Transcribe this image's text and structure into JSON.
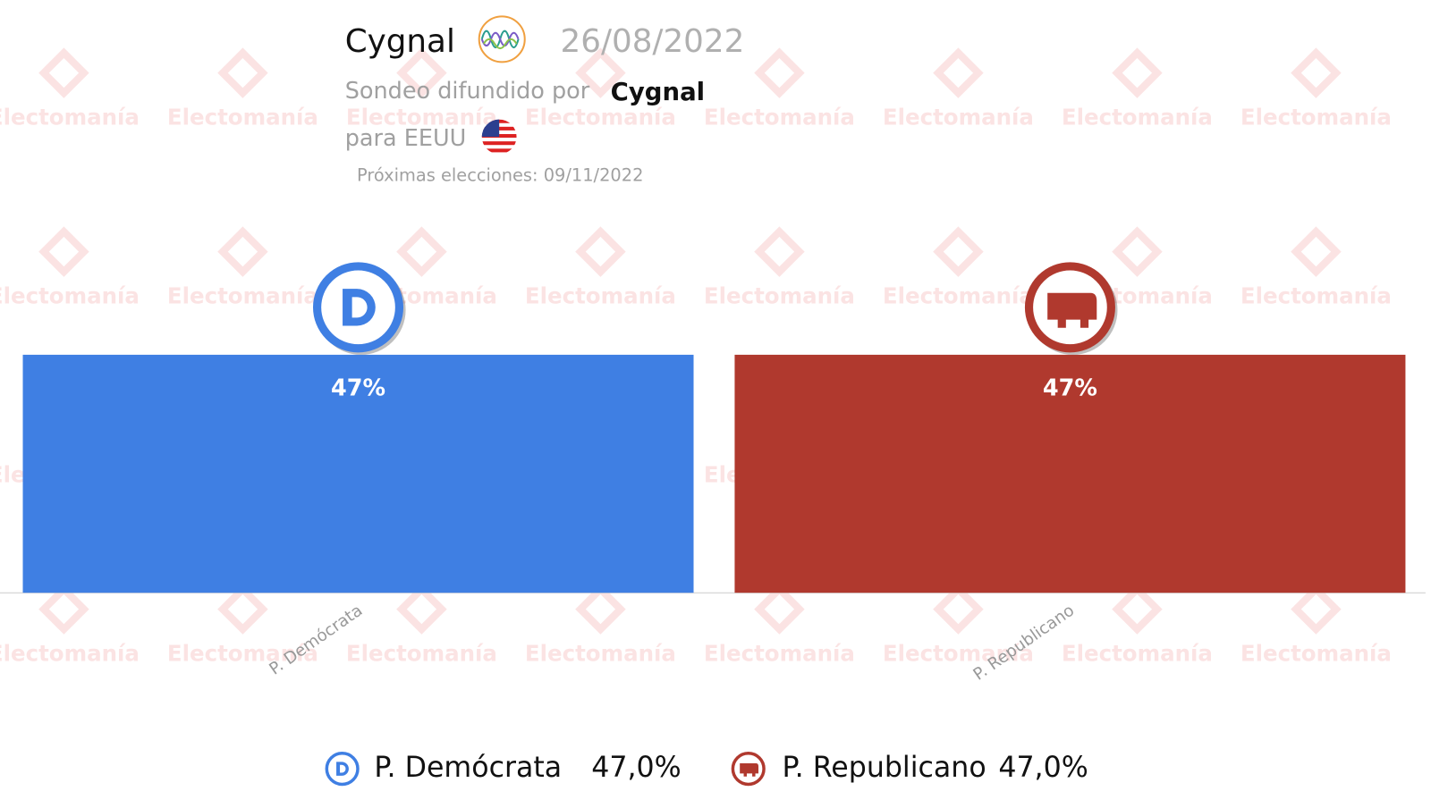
{
  "header": {
    "pollster": "Cygnal",
    "date": "26/08/2022",
    "released_by": "Sondeo difundido por",
    "released_by_name": "Cygnal",
    "region": "para EEUU",
    "next_election": "Próximas elecciones: 09/11/2022"
  },
  "watermark": "Electomanía",
  "chart_data": {
    "type": "bar",
    "categories": [
      "P. Demócrata",
      "P. Republicano"
    ],
    "values": [
      47,
      47
    ],
    "value_labels": [
      "47%",
      "47%"
    ],
    "colors": [
      "#3f7fe3",
      "#b0392e"
    ],
    "legend_value_labels": [
      "47,0%",
      "47,0%"
    ]
  }
}
